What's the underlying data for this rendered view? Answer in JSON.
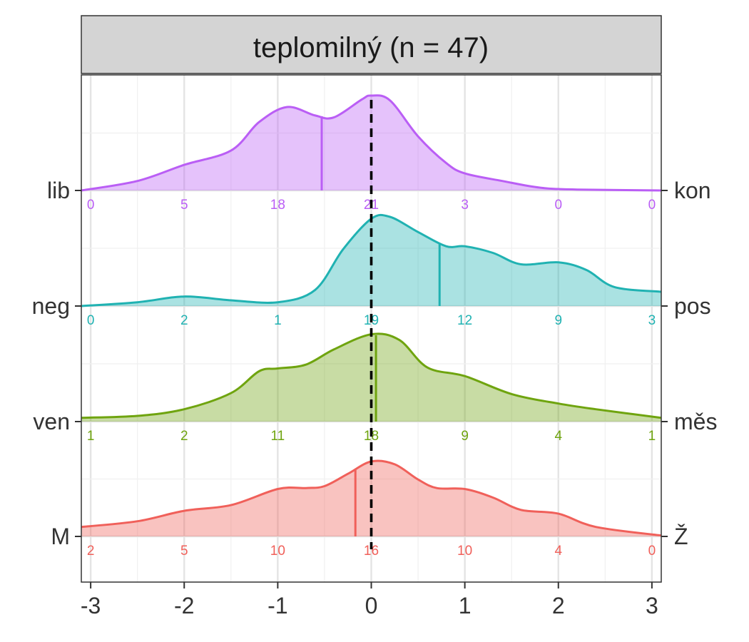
{
  "chart_data": {
    "type": "ridgeline",
    "title": "teplomilný (n = 47)",
    "xlim": [
      -3.1,
      3.1
    ],
    "x_ticks": [
      -3,
      -2,
      -1,
      0,
      1,
      2,
      3
    ],
    "reference_line": 0,
    "grid": true,
    "series": [
      {
        "left_label": "M",
        "right_label": "Ž",
        "color": "#F0605A",
        "mean": -0.17,
        "counts": [
          "2",
          "5",
          "10",
          "16",
          "10",
          "4",
          "0"
        ],
        "density": [
          [
            -3.1,
            0.1
          ],
          [
            -2.5,
            0.16
          ],
          [
            -2.0,
            0.27
          ],
          [
            -1.5,
            0.33
          ],
          [
            -1.0,
            0.5
          ],
          [
            -0.7,
            0.51
          ],
          [
            -0.5,
            0.53
          ],
          [
            -0.25,
            0.66
          ],
          [
            0.0,
            0.79
          ],
          [
            0.25,
            0.76
          ],
          [
            0.5,
            0.6
          ],
          [
            0.7,
            0.51
          ],
          [
            1.0,
            0.5
          ],
          [
            1.3,
            0.41
          ],
          [
            1.6,
            0.28
          ],
          [
            2.0,
            0.24
          ],
          [
            2.4,
            0.1
          ],
          [
            3.1,
            0.01
          ]
        ]
      },
      {
        "left_label": "ven",
        "right_label": "měs",
        "color": "#6FA40F",
        "mean": 0.05,
        "counts": [
          "1",
          "2",
          "11",
          "18",
          "9",
          "4",
          "1"
        ],
        "density": [
          [
            -3.1,
            0.04
          ],
          [
            -2.5,
            0.06
          ],
          [
            -2.0,
            0.13
          ],
          [
            -1.5,
            0.3
          ],
          [
            -1.2,
            0.53
          ],
          [
            -1.0,
            0.56
          ],
          [
            -0.7,
            0.6
          ],
          [
            -0.4,
            0.76
          ],
          [
            0.0,
            0.92
          ],
          [
            0.3,
            0.86
          ],
          [
            0.6,
            0.57
          ],
          [
            1.0,
            0.48
          ],
          [
            1.5,
            0.29
          ],
          [
            2.0,
            0.19
          ],
          [
            2.4,
            0.13
          ],
          [
            3.1,
            0.04
          ]
        ]
      },
      {
        "left_label": "neg",
        "right_label": "pos",
        "color": "#20B2B2",
        "mean": 0.73,
        "counts": [
          "0",
          "2",
          "1",
          "19",
          "12",
          "9",
          "3"
        ],
        "density": [
          [
            -3.1,
            0.0
          ],
          [
            -2.5,
            0.04
          ],
          [
            -2.0,
            0.1
          ],
          [
            -1.5,
            0.06
          ],
          [
            -1.0,
            0.04
          ],
          [
            -0.6,
            0.17
          ],
          [
            -0.3,
            0.6
          ],
          [
            0.0,
            0.92
          ],
          [
            0.2,
            0.94
          ],
          [
            0.5,
            0.78
          ],
          [
            0.8,
            0.63
          ],
          [
            1.0,
            0.63
          ],
          [
            1.3,
            0.56
          ],
          [
            1.6,
            0.44
          ],
          [
            2.0,
            0.46
          ],
          [
            2.3,
            0.38
          ],
          [
            2.6,
            0.2
          ],
          [
            3.1,
            0.15
          ]
        ]
      },
      {
        "left_label": "lib",
        "right_label": "kon",
        "color": "#BA5EF5",
        "mean": -0.53,
        "counts": [
          "0",
          "5",
          "18",
          "21",
          "3",
          "0",
          "0"
        ],
        "density": [
          [
            -3.1,
            0.0
          ],
          [
            -2.5,
            0.1
          ],
          [
            -2.0,
            0.27
          ],
          [
            -1.5,
            0.42
          ],
          [
            -1.2,
            0.72
          ],
          [
            -0.9,
            0.88
          ],
          [
            -0.6,
            0.79
          ],
          [
            -0.4,
            0.77
          ],
          [
            -0.1,
            0.96
          ],
          [
            0.0,
            1.0
          ],
          [
            0.2,
            0.95
          ],
          [
            0.5,
            0.57
          ],
          [
            0.8,
            0.29
          ],
          [
            1.0,
            0.18
          ],
          [
            1.4,
            0.1
          ],
          [
            1.8,
            0.03
          ],
          [
            2.2,
            0.01
          ],
          [
            3.1,
            0.0
          ]
        ]
      }
    ]
  }
}
